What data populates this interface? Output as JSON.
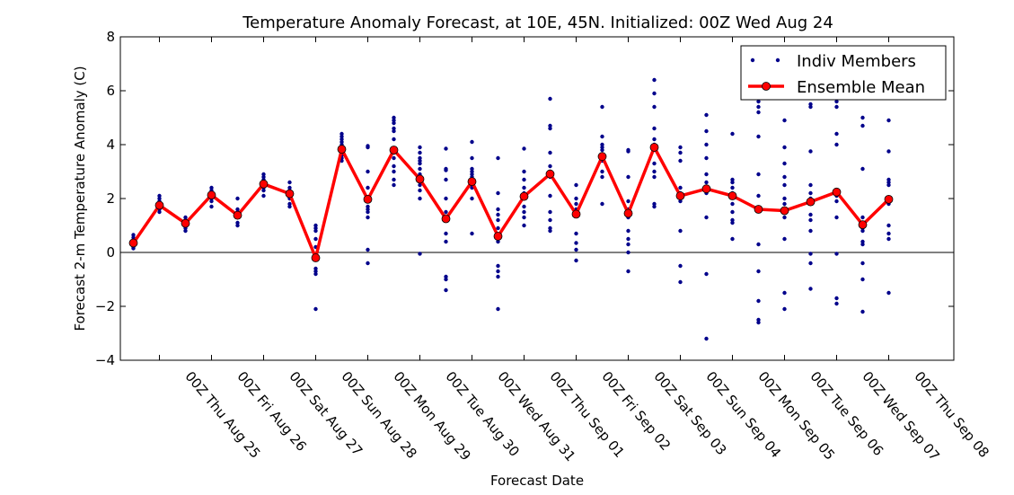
{
  "chart_data": {
    "type": "scatter",
    "title": "Temperature Anomaly Forecast, at 10E, 45N.  Initialized: 00Z Wed Aug 24",
    "xlabel": "Forecast Date",
    "ylabel": "Forecast 2-m Temperature Anomaly (C)",
    "ylim": [
      -4,
      8
    ],
    "yticks": [
      -4,
      -2,
      0,
      2,
      4,
      6,
      8
    ],
    "xlim": [
      -0.5,
      31.5
    ],
    "xticks": [
      {
        "x": 1,
        "label": "00Z Thu Aug 25"
      },
      {
        "x": 3,
        "label": "00Z Fri Aug 26"
      },
      {
        "x": 5,
        "label": "00Z Sat Aug 27"
      },
      {
        "x": 7,
        "label": "00Z Sun Aug 28"
      },
      {
        "x": 9,
        "label": "00Z Mon Aug 29"
      },
      {
        "x": 11,
        "label": "00Z Tue Aug 30"
      },
      {
        "x": 13,
        "label": "00Z Wed Aug 31"
      },
      {
        "x": 15,
        "label": "00Z Thu Sep 01"
      },
      {
        "x": 17,
        "label": "00Z Fri Sep 02"
      },
      {
        "x": 19,
        "label": "00Z Sat Sep 03"
      },
      {
        "x": 21,
        "label": "00Z Sun Sep 04"
      },
      {
        "x": 23,
        "label": "00Z Mon Sep 05"
      },
      {
        "x": 25,
        "label": "00Z Tue Sep 06"
      },
      {
        "x": 27,
        "label": "00Z Wed Sep 07"
      },
      {
        "x": 29,
        "label": "00Z Thu Sep 08"
      }
    ],
    "zero_line": true,
    "grid": false,
    "legend": "top-right",
    "series": [
      {
        "name": "Indiv Members",
        "style": "points",
        "color": "#00008b",
        "values": [
          [
            0.15,
            0.2,
            0.3,
            0.4,
            0.45,
            0.55,
            0.65
          ],
          [
            1.5,
            1.6,
            1.7,
            1.8,
            1.9,
            2.0,
            2.1
          ],
          [
            0.8,
            0.9,
            1.0,
            1.1,
            1.2,
            1.3
          ],
          [
            1.7,
            1.9,
            2.0,
            2.1,
            2.2,
            2.3,
            2.4
          ],
          [
            1.0,
            1.1,
            1.3,
            1.4,
            1.5,
            1.6,
            2.0
          ],
          [
            2.1,
            2.3,
            2.4,
            2.5,
            2.6,
            2.7,
            2.8,
            2.9
          ],
          [
            1.7,
            1.8,
            2.0,
            2.2,
            2.3,
            2.4,
            2.6
          ],
          [
            -2.1,
            -0.8,
            -0.7,
            -0.6,
            -0.2,
            0.2,
            0.5,
            0.8,
            0.9,
            1.0
          ],
          [
            3.4,
            3.5,
            3.6,
            3.7,
            3.8,
            3.9,
            4.0,
            4.1,
            4.2,
            4.3,
            4.4
          ],
          [
            -0.4,
            0.1,
            1.3,
            1.5,
            1.6,
            1.7,
            2.0,
            2.4,
            3.0,
            3.9,
            3.95
          ],
          [
            2.5,
            2.7,
            3.0,
            3.2,
            3.5,
            3.7,
            4.2,
            4.5,
            4.6,
            4.8,
            4.9,
            5.0
          ],
          [
            -0.05,
            2.0,
            2.3,
            2.5,
            2.9,
            3.1,
            3.3,
            3.4,
            3.5,
            3.7,
            3.9
          ],
          [
            -1.4,
            -1.0,
            -0.9,
            0.4,
            0.7,
            1.2,
            1.5,
            2.0,
            2.7,
            3.05,
            3.1,
            3.85
          ],
          [
            0.7,
            2.0,
            2.4,
            2.5,
            2.6,
            2.8,
            2.9,
            3.0,
            3.1,
            3.5,
            4.1
          ],
          [
            -2.1,
            -0.9,
            -0.7,
            -0.5,
            0.4,
            0.6,
            0.9,
            1.2,
            1.4,
            1.6,
            2.2,
            3.5
          ],
          [
            1.0,
            1.3,
            1.5,
            1.7,
            2.0,
            2.2,
            2.4,
            2.7,
            3.0,
            3.85
          ],
          [
            0.8,
            0.9,
            1.2,
            1.5,
            2.1,
            2.8,
            3.0,
            3.2,
            3.7,
            4.6,
            4.7,
            5.7
          ],
          [
            -0.3,
            0.1,
            0.35,
            0.7,
            1.4,
            1.6,
            1.8,
            2.0,
            2.5
          ],
          [
            1.8,
            2.8,
            3.0,
            3.4,
            3.6,
            3.8,
            3.9,
            4.0,
            4.3,
            5.4
          ],
          [
            -0.7,
            0.0,
            0.3,
            0.5,
            0.8,
            1.3,
            1.6,
            1.9,
            2.8,
            3.75,
            3.8
          ],
          [
            1.7,
            1.8,
            2.8,
            3.0,
            3.3,
            3.8,
            4.0,
            4.2,
            4.6,
            5.4,
            5.9,
            6.4
          ],
          [
            -1.1,
            -0.5,
            0.8,
            1.9,
            2.2,
            2.4,
            3.4,
            3.7,
            3.9
          ],
          [
            -3.2,
            -0.8,
            1.3,
            2.2,
            2.6,
            2.9,
            3.5,
            4.0,
            4.5,
            5.1
          ],
          [
            0.5,
            1.1,
            1.2,
            1.5,
            1.8,
            2.2,
            2.4,
            2.6,
            2.7,
            4.4
          ],
          [
            -2.6,
            -2.5,
            -1.8,
            -0.7,
            0.3,
            1.6,
            2.1,
            2.9,
            4.3,
            5.2,
            5.4,
            5.6,
            5.8
          ],
          [
            -2.1,
            -1.5,
            0.5,
            1.3,
            1.6,
            1.8,
            2.0,
            2.5,
            2.8,
            3.3,
            3.9,
            4.9
          ],
          [
            -1.35,
            -0.4,
            -0.05,
            0.8,
            1.2,
            1.4,
            2.0,
            2.2,
            2.5,
            3.75,
            5.4,
            5.5
          ],
          [
            -1.9,
            -1.7,
            -0.05,
            1.3,
            1.9,
            2.1,
            2.3,
            4.0,
            4.4,
            5.4,
            5.6
          ],
          [
            -2.2,
            -1.0,
            -0.4,
            0.3,
            0.4,
            0.8,
            0.9,
            1.1,
            1.3,
            3.1,
            4.7,
            5.0
          ],
          [
            -1.5,
            0.5,
            0.7,
            1.0,
            1.8,
            2.0,
            2.5,
            2.6,
            2.7,
            3.75,
            4.9
          ]
        ]
      },
      {
        "name": "Ensemble Mean",
        "style": "line",
        "color": "#ff0000",
        "values": [
          0.35,
          1.75,
          1.08,
          2.13,
          1.38,
          2.54,
          2.18,
          -0.2,
          3.83,
          1.97,
          3.8,
          2.72,
          1.25,
          2.63,
          0.6,
          2.08,
          2.91,
          1.42,
          3.56,
          1.45,
          3.9,
          2.1,
          2.36,
          2.1,
          1.6,
          1.55,
          1.88,
          2.24,
          1.03,
          1.97
        ]
      }
    ]
  }
}
